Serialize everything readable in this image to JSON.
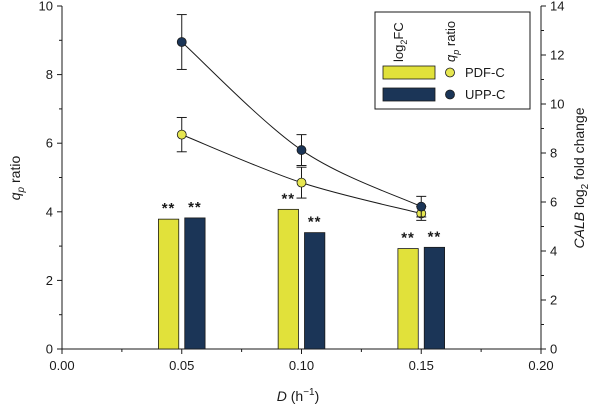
{
  "chart_data": {
    "type": "bar",
    "x_axis": {
      "label_italic": "D",
      "label_rest": " (h",
      "label_sup": "−1",
      "label_close": ")",
      "range": [
        0.0,
        0.2
      ],
      "ticks": [
        "0.00",
        "0.05",
        "0.10",
        "0.15",
        "0.20"
      ]
    },
    "y_left": {
      "label_italic": "q",
      "label_sub": "p",
      "label_rest": " ratio",
      "range": [
        0,
        10
      ],
      "ticks": [
        "0",
        "2",
        "4",
        "6",
        "8",
        "10"
      ]
    },
    "y_right": {
      "label_italic": "CALB",
      "label_mid": " log",
      "label_sub": "2",
      "label_rest": " fold change",
      "range": [
        0,
        14
      ],
      "ticks": [
        "0",
        "2",
        "4",
        "6",
        "8",
        "10",
        "12",
        "14"
      ]
    },
    "legend": {
      "placement": "top-right",
      "header_bar_pre": "log",
      "header_bar_sub": "2",
      "header_bar_post": "FC",
      "header_point_italic": "q",
      "header_point_sub": "p",
      "header_point_rest": " ratio",
      "entries": [
        "PDF-C",
        "UPP-C"
      ]
    },
    "bars": {
      "axis": "right",
      "x": [
        0.05,
        0.1,
        0.15
      ],
      "offset": 0.0055,
      "width": 0.0085,
      "series": [
        {
          "name": "PDF-C",
          "color": "#e1e13a",
          "values": [
            5.3,
            5.7,
            4.1
          ],
          "labels": [
            "**",
            "**",
            "**"
          ]
        },
        {
          "name": "UPP-C",
          "color": "#1b3557",
          "values": [
            5.35,
            4.75,
            4.15
          ],
          "labels": [
            "**",
            "**",
            "**"
          ]
        }
      ]
    },
    "points": {
      "axis": "left",
      "series": [
        {
          "name": "PDF-C",
          "color": "#e6e650",
          "x": [
            0.05,
            0.1,
            0.15
          ],
          "y": [
            6.25,
            4.85,
            3.95
          ],
          "err": [
            0.5,
            0.45,
            0.2
          ]
        },
        {
          "name": "UPP-C",
          "color": "#1b3557",
          "x": [
            0.05,
            0.1,
            0.15
          ],
          "y": [
            8.95,
            5.8,
            4.15
          ],
          "err": [
            0.8,
            0.45,
            0.3
          ]
        }
      ]
    },
    "grid": false
  }
}
